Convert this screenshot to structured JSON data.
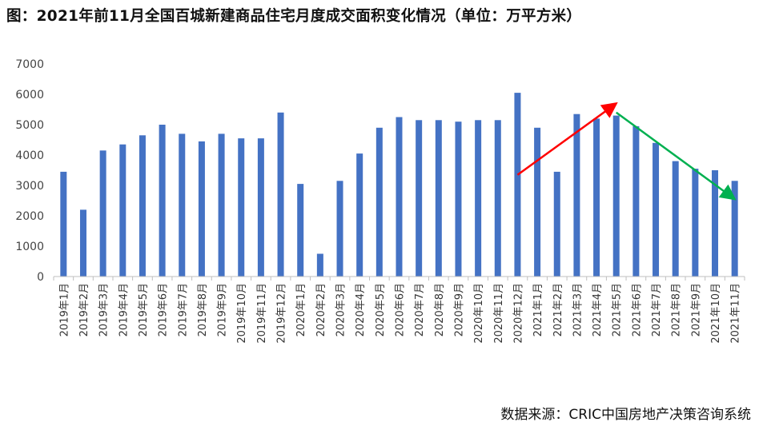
{
  "title": "图：2021年前11月全国百城新建商品住宅月度成交面积变化情况（单位：万平方米）",
  "source": "数据来源：CRIC中国房地产决策咨询系统",
  "colors": {
    "bar": "#4472c4",
    "up_arrow": "#ff0000",
    "down_arrow": "#00b050",
    "axis": "#bfbfbf"
  },
  "chart_data": {
    "type": "bar",
    "title": "图：2021年前11月全国百城新建商品住宅月度成交面积变化情况（单位：万平方米）",
    "unit": "万平方米",
    "ylim": [
      0,
      7000
    ],
    "yticks": [
      "0",
      "1000",
      "2000",
      "3000",
      "4000",
      "5000",
      "6000",
      "7000"
    ],
    "grid": false,
    "legend": "none",
    "categories": [
      "2019年1月",
      "2019年2月",
      "2019年3月",
      "2019年4月",
      "2019年5月",
      "2019年6月",
      "2019年7月",
      "2019年8月",
      "2019年9月",
      "2019年10月",
      "2019年11月",
      "2019年12月",
      "2020年1月",
      "2020年2月",
      "2020年3月",
      "2020年4月",
      "2020年5月",
      "2020年6月",
      "2020年7月",
      "2020年8月",
      "2020年9月",
      "2020年10月",
      "2020年11月",
      "2020年12月",
      "2021年1月",
      "2021年2月",
      "2021年3月",
      "2021年4月",
      "2021年5月",
      "2021年6月",
      "2021年7月",
      "2021年8月",
      "2021年9月",
      "2021年10月",
      "2021年11月"
    ],
    "values": [
      3450,
      2200,
      4150,
      4350,
      4650,
      5000,
      4700,
      4450,
      4700,
      4550,
      4550,
      5400,
      3050,
      750,
      3150,
      4050,
      4900,
      5250,
      5150,
      5150,
      5100,
      5150,
      5150,
      6050,
      4900,
      3450,
      5350,
      5200,
      5300,
      4950,
      4400,
      3800,
      3550,
      3500,
      3150
    ],
    "annotations": [
      {
        "type": "arrow",
        "color": "#ff0000",
        "from": [
          "2020年12月",
          3350
        ],
        "to": [
          "2021年5月",
          5700
        ]
      },
      {
        "type": "arrow",
        "color": "#00b050",
        "from": [
          "2021年5月",
          5400
        ],
        "to": [
          "2021年11月",
          2550
        ]
      }
    ]
  }
}
